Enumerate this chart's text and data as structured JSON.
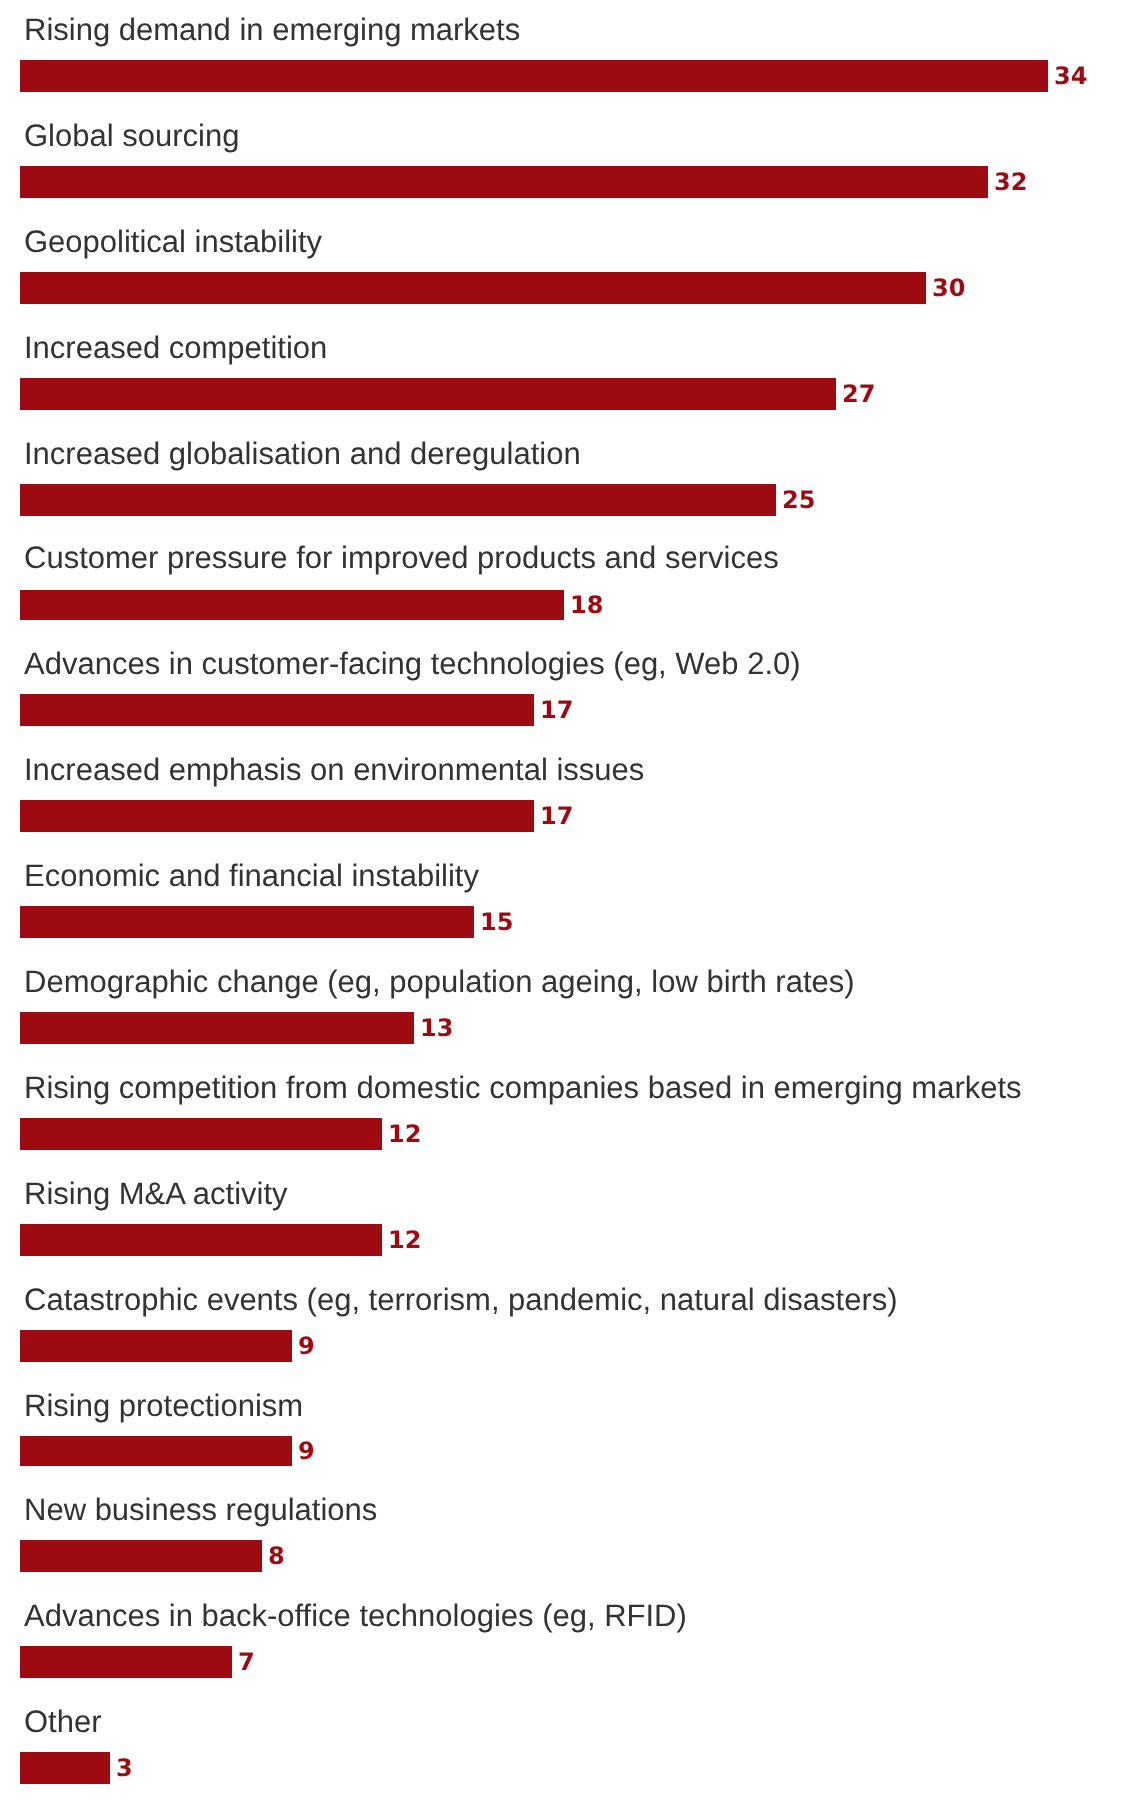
{
  "chart_data": {
    "type": "bar",
    "orientation": "horizontal",
    "data_labels": true,
    "grid": false,
    "legend": false,
    "categories": [
      "Rising demand in emerging markets",
      "Global sourcing",
      "Geopolitical instability",
      "Increased competition",
      "Increased globalisation and deregulation",
      "Customer pressure for improved products and services",
      "Advances in customer-facing technologies (eg, Web 2.0)",
      "Increased emphasis on environmental issues",
      "Economic and financial instability",
      "Demographic change (eg, population ageing, low birth rates)",
      "Rising competition from domestic companies based in emerging markets",
      "Rising M&A activity",
      "Catastrophic events (eg, terrorism, pandemic, natural disasters)",
      "Rising protectionism",
      "New business regulations",
      "Advances in back-office technologies (eg, RFID)",
      "Other"
    ],
    "values": [
      34,
      32,
      30,
      27,
      25,
      18,
      17,
      17,
      15,
      13,
      12,
      12,
      9,
      9,
      8,
      7,
      3
    ],
    "color": "#9e0a12"
  }
}
